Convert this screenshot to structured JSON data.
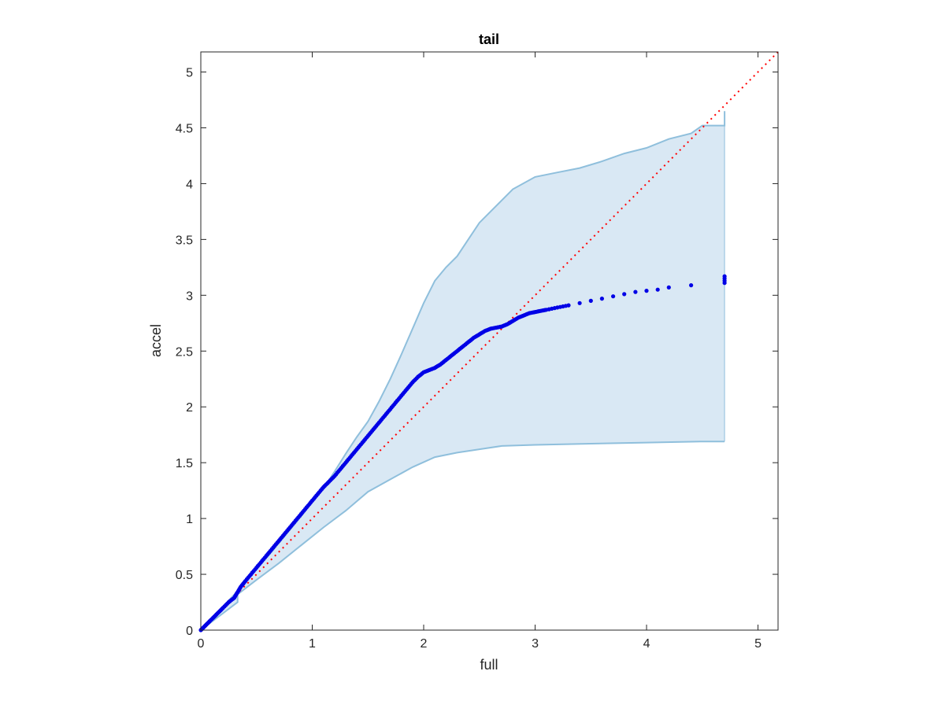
{
  "chart_data": {
    "type": "scatter",
    "title": "tail",
    "xlabel": "full",
    "ylabel": "accel",
    "xlim": [
      0,
      5.18
    ],
    "ylim": [
      0,
      5.18
    ],
    "xticks": [
      0,
      1,
      2,
      3,
      4,
      5
    ],
    "yticks": [
      0,
      0.5,
      1,
      1.5,
      2,
      2.5,
      3,
      3.5,
      4,
      4.5,
      5
    ],
    "xtick_labels": [
      "0",
      "1",
      "2",
      "3",
      "4",
      "5"
    ],
    "ytick_labels": [
      "0",
      "0.5",
      "1",
      "1.5",
      "2",
      "2.5",
      "3",
      "3.5",
      "4",
      "4.5",
      "5"
    ],
    "grid": false,
    "colors": {
      "points": "#0000e6",
      "band_fill": "#d9e8f4",
      "band_edge": "#8fbfdc",
      "reference": "#ff0000",
      "axes": "#262626"
    },
    "reference_line": {
      "style": "dotted",
      "x": [
        0,
        5.18
      ],
      "y": [
        0,
        5.18
      ]
    },
    "band": {
      "upper": {
        "x": [
          0,
          0.33,
          0.4,
          0.5,
          0.6,
          0.7,
          0.8,
          0.9,
          1.0,
          1.1,
          1.2,
          1.3,
          1.4,
          1.5,
          1.6,
          1.7,
          1.8,
          1.9,
          2.0,
          2.1,
          2.2,
          2.3,
          2.4,
          2.5,
          2.6,
          2.7,
          2.8,
          3.0,
          3.2,
          3.4,
          3.6,
          3.8,
          4.0,
          4.2,
          4.4,
          4.5,
          4.7,
          4.7
        ],
        "y": [
          0,
          0.35,
          0.45,
          0.56,
          0.66,
          0.78,
          0.9,
          1.02,
          1.15,
          1.27,
          1.42,
          1.58,
          1.73,
          1.87,
          2.05,
          2.25,
          2.47,
          2.7,
          2.93,
          3.13,
          3.25,
          3.35,
          3.5,
          3.65,
          3.75,
          3.85,
          3.95,
          4.06,
          4.1,
          4.14,
          4.2,
          4.27,
          4.32,
          4.4,
          4.45,
          4.52,
          4.52,
          4.65
        ]
      },
      "lower": {
        "x": [
          0,
          0.33,
          0.33,
          0.5,
          0.7,
          0.9,
          1.1,
          1.3,
          1.5,
          1.7,
          1.9,
          2.1,
          2.3,
          2.5,
          2.7,
          3.0,
          3.5,
          4.0,
          4.5,
          4.7
        ],
        "y": [
          0,
          0.25,
          0.32,
          0.45,
          0.6,
          0.76,
          0.92,
          1.07,
          1.24,
          1.35,
          1.46,
          1.55,
          1.59,
          1.62,
          1.65,
          1.66,
          1.67,
          1.68,
          1.69,
          1.69
        ]
      }
    },
    "series": [
      {
        "x": [
          0,
          0.02,
          0.05,
          0.08,
          0.12,
          0.16,
          0.2,
          0.25,
          0.3,
          0.33,
          0.36,
          0.4,
          0.45,
          0.5,
          0.55,
          0.6,
          0.65,
          0.7,
          0.75,
          0.8,
          0.85,
          0.9,
          0.95,
          1.0,
          1.05,
          1.1,
          1.15,
          1.2,
          1.25,
          1.3,
          1.35,
          1.4,
          1.45,
          1.5,
          1.55,
          1.6,
          1.65,
          1.7,
          1.75,
          1.8,
          1.85,
          1.9,
          1.95,
          2.0,
          2.05,
          2.1,
          2.15,
          2.2,
          2.25,
          2.3,
          2.35,
          2.4,
          2.45,
          2.5,
          2.55,
          2.6,
          2.65,
          2.7,
          2.75,
          2.8,
          2.85,
          2.9,
          2.95,
          3.0,
          3.05,
          3.1,
          3.2,
          3.3,
          3.4,
          3.5,
          3.6,
          3.7,
          3.8,
          3.9,
          4.0,
          4.1,
          4.2,
          4.4,
          4.7,
          4.7,
          4.7,
          4.7
        ],
        "y": [
          0,
          0.02,
          0.05,
          0.08,
          0.12,
          0.16,
          0.2,
          0.25,
          0.29,
          0.34,
          0.39,
          0.44,
          0.5,
          0.56,
          0.62,
          0.68,
          0.74,
          0.8,
          0.86,
          0.92,
          0.98,
          1.04,
          1.1,
          1.16,
          1.22,
          1.28,
          1.33,
          1.38,
          1.44,
          1.5,
          1.56,
          1.62,
          1.68,
          1.74,
          1.8,
          1.86,
          1.92,
          1.98,
          2.04,
          2.1,
          2.16,
          2.22,
          2.27,
          2.31,
          2.33,
          2.35,
          2.38,
          2.42,
          2.46,
          2.5,
          2.54,
          2.58,
          2.62,
          2.65,
          2.68,
          2.7,
          2.71,
          2.72,
          2.74,
          2.77,
          2.8,
          2.82,
          2.84,
          2.85,
          2.86,
          2.87,
          2.89,
          2.91,
          2.93,
          2.95,
          2.97,
          2.99,
          3.01,
          3.03,
          3.04,
          3.05,
          3.07,
          3.09,
          3.11,
          3.13,
          3.15,
          3.17
        ]
      }
    ]
  }
}
